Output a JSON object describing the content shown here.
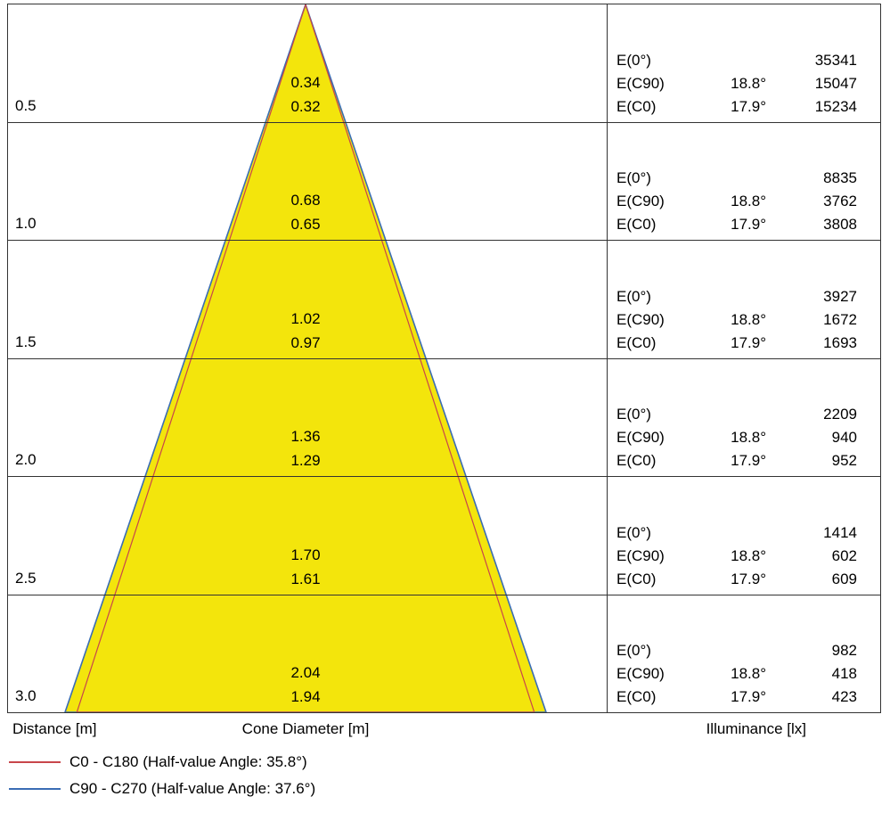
{
  "colors": {
    "cone_fill": "#f3e50c",
    "grid_line": "#333333"
  },
  "axis": {
    "distance": "Distance [m]",
    "cone_diameter": "Cone Diameter [m]",
    "illuminance": "Illuminance [lx]"
  },
  "legend": [
    {
      "label": "C0 - C180 (Half-value Angle: 35.8°)",
      "color": "#c8464b"
    },
    {
      "label": "C90 - C270 (Half-value Angle: 37.6°)",
      "color": "#3a6db4"
    }
  ],
  "rows": [
    {
      "distance": "0.5",
      "dia_top": "0.34",
      "dia_bottom": "0.32",
      "e": [
        {
          "label": "E(0°)",
          "angle": "",
          "value": "35341"
        },
        {
          "label": "E(C90)",
          "angle": "18.8°",
          "value": "15047"
        },
        {
          "label": "E(C0)",
          "angle": "17.9°",
          "value": "15234"
        }
      ]
    },
    {
      "distance": "1.0",
      "dia_top": "0.68",
      "dia_bottom": "0.65",
      "e": [
        {
          "label": "E(0°)",
          "angle": "",
          "value": "8835"
        },
        {
          "label": "E(C90)",
          "angle": "18.8°",
          "value": "3762"
        },
        {
          "label": "E(C0)",
          "angle": "17.9°",
          "value": "3808"
        }
      ]
    },
    {
      "distance": "1.5",
      "dia_top": "1.02",
      "dia_bottom": "0.97",
      "e": [
        {
          "label": "E(0°)",
          "angle": "",
          "value": "3927"
        },
        {
          "label": "E(C90)",
          "angle": "18.8°",
          "value": "1672"
        },
        {
          "label": "E(C0)",
          "angle": "17.9°",
          "value": "1693"
        }
      ]
    },
    {
      "distance": "2.0",
      "dia_top": "1.36",
      "dia_bottom": "1.29",
      "e": [
        {
          "label": "E(0°)",
          "angle": "",
          "value": "2209"
        },
        {
          "label": "E(C90)",
          "angle": "18.8°",
          "value": "940"
        },
        {
          "label": "E(C0)",
          "angle": "17.9°",
          "value": "952"
        }
      ]
    },
    {
      "distance": "2.5",
      "dia_top": "1.70",
      "dia_bottom": "1.61",
      "e": [
        {
          "label": "E(0°)",
          "angle": "",
          "value": "1414"
        },
        {
          "label": "E(C90)",
          "angle": "18.8°",
          "value": "602"
        },
        {
          "label": "E(C0)",
          "angle": "17.9°",
          "value": "609"
        }
      ]
    },
    {
      "distance": "3.0",
      "dia_top": "2.04",
      "dia_bottom": "1.94",
      "e": [
        {
          "label": "E(0°)",
          "angle": "",
          "value": "982"
        },
        {
          "label": "E(C90)",
          "angle": "18.8°",
          "value": "418"
        },
        {
          "label": "E(C0)",
          "angle": "17.9°",
          "value": "423"
        }
      ]
    }
  ],
  "chart_data": {
    "type": "cone-diagram",
    "title": "Luminaire light cone diagram",
    "xlabel": "Distance [m]",
    "cone_axis_label": "Cone Diameter [m]",
    "illuminance_label": "Illuminance [lx]",
    "distances_m": [
      0.5,
      1.0,
      1.5,
      2.0,
      2.5,
      3.0
    ],
    "series": [
      {
        "name": "C90 - C270",
        "half_value_angle_deg": 37.6,
        "half_angle_label": "18.8°",
        "cone_diameters_m": [
          0.34,
          0.68,
          1.02,
          1.36,
          1.7,
          2.04
        ],
        "color": "#3a6db4"
      },
      {
        "name": "C0 - C180",
        "half_value_angle_deg": 35.8,
        "half_angle_label": "17.9°",
        "cone_diameters_m": [
          0.32,
          0.65,
          0.97,
          1.29,
          1.61,
          1.94
        ],
        "color": "#c8464b"
      }
    ],
    "illuminance_lx": {
      "E(0°)": [
        35341,
        8835,
        3927,
        2209,
        1414,
        982
      ],
      "E(C90)": [
        15047,
        3762,
        1672,
        940,
        602,
        418
      ],
      "E(C0)": [
        15234,
        3808,
        1693,
        952,
        609,
        423
      ]
    },
    "legend_position": "bottom-left",
    "grid": true
  }
}
